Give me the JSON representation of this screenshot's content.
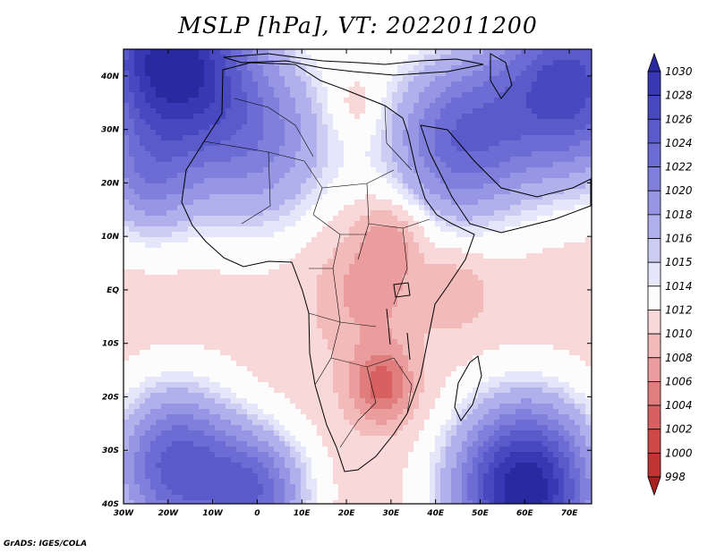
{
  "title": "MSLP [hPa], VT: 2022011200",
  "credit": "GrADS: IGES/COLA",
  "map": {
    "variable": "MSLP",
    "units": "hPa",
    "valid_time": "2022011200",
    "lon_range": [
      -30,
      75
    ],
    "lat_range": [
      -40,
      45
    ],
    "lat_ticks": [
      {
        "value": 40,
        "label": "40N"
      },
      {
        "value": 30,
        "label": "30N"
      },
      {
        "value": 20,
        "label": "20N"
      },
      {
        "value": 10,
        "label": "10N"
      },
      {
        "value": 0,
        "label": "EQ"
      },
      {
        "value": -10,
        "label": "10S"
      },
      {
        "value": -20,
        "label": "20S"
      },
      {
        "value": -30,
        "label": "30S"
      },
      {
        "value": -40,
        "label": "40S"
      }
    ],
    "lon_ticks": [
      {
        "value": -30,
        "label": "30W"
      },
      {
        "value": -20,
        "label": "20W"
      },
      {
        "value": -10,
        "label": "10W"
      },
      {
        "value": 0,
        "label": "0"
      },
      {
        "value": 10,
        "label": "10E"
      },
      {
        "value": 20,
        "label": "20E"
      },
      {
        "value": 30,
        "label": "30E"
      },
      {
        "value": 40,
        "label": "40E"
      },
      {
        "value": 50,
        "label": "50E"
      },
      {
        "value": 60,
        "label": "60E"
      },
      {
        "value": 70,
        "label": "70E"
      }
    ]
  },
  "colorbar": {
    "labels": [
      "1030",
      "1028",
      "1026",
      "1024",
      "1022",
      "1020",
      "1018",
      "1016",
      "1015",
      "1014",
      "1012",
      "1010",
      "1008",
      "1006",
      "1004",
      "1002",
      "1000",
      "998"
    ],
    "colors": [
      "#2a2aa0",
      "#3838b4",
      "#4848c0",
      "#5a5acb",
      "#6c6cd4",
      "#8080dc",
      "#9696e4",
      "#b0b0ec",
      "#cdcdf4",
      "#e6e6fa",
      "#fcfcfc",
      "#f8d8d8",
      "#f3baba",
      "#eb9c9c",
      "#e07e7e",
      "#d86060",
      "#ce4848",
      "#c03434",
      "#a82222"
    ]
  },
  "pressure_field": {
    "background_hPa": 1011,
    "centers": [
      {
        "lon": -20,
        "lat": 43,
        "hPa": 1031,
        "spread_deg": 12
      },
      {
        "lon": 70,
        "lat": 38,
        "hPa": 1027,
        "spread_deg": 12
      },
      {
        "lon": 45,
        "lat": 28,
        "hPa": 1023,
        "spread_deg": 11
      },
      {
        "lon": 0,
        "lat": 28,
        "hPa": 1020,
        "spread_deg": 12
      },
      {
        "lon": -25,
        "lat": 20,
        "hPa": 1018,
        "spread_deg": 8
      },
      {
        "lon": 22,
        "lat": 34,
        "hPa": 1009,
        "spread_deg": 4
      },
      {
        "lon": 60,
        "lat": -37,
        "hPa": 1032,
        "spread_deg": 11
      },
      {
        "lon": -18,
        "lat": -33,
        "hPa": 1025,
        "spread_deg": 10
      },
      {
        "lon": 0,
        "lat": -38,
        "hPa": 1022,
        "spread_deg": 8
      },
      {
        "lon": 28,
        "lat": -18,
        "hPa": 1003,
        "spread_deg": 5
      },
      {
        "lon": 25,
        "lat": 0,
        "hPa": 1007,
        "spread_deg": 8
      },
      {
        "lon": 30,
        "lat": 10,
        "hPa": 1007,
        "spread_deg": 5
      },
      {
        "lon": 45,
        "lat": 0,
        "hPa": 1008,
        "spread_deg": 5
      }
    ]
  }
}
